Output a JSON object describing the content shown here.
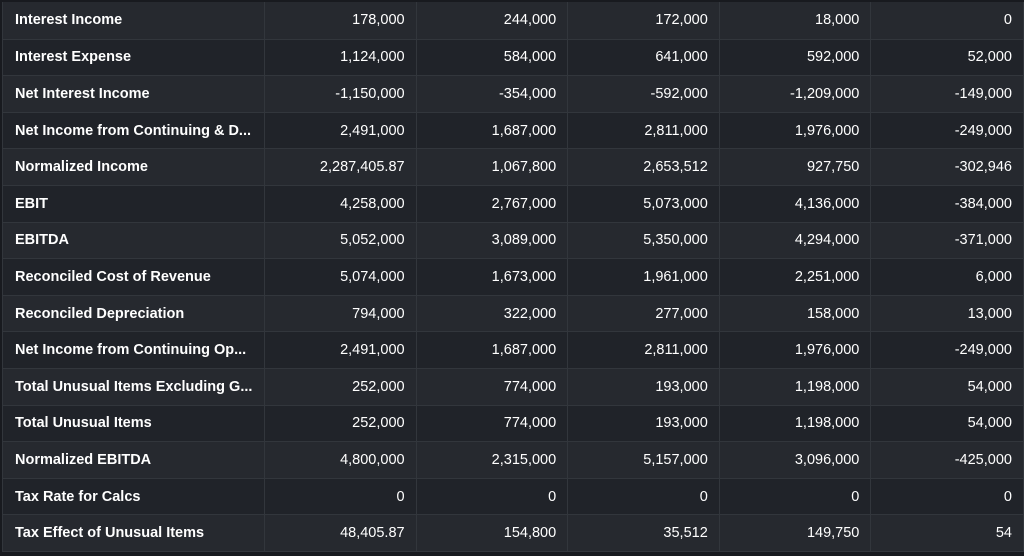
{
  "rows": [
    {
      "label": "Interest Income",
      "values": [
        "178,000",
        "244,000",
        "172,000",
        "18,000",
        "0"
      ]
    },
    {
      "label": "Interest Expense",
      "values": [
        "1,124,000",
        "584,000",
        "641,000",
        "592,000",
        "52,000"
      ]
    },
    {
      "label": "Net Interest Income",
      "values": [
        "-1,150,000",
        "-354,000",
        "-592,000",
        "-1,209,000",
        "-149,000"
      ]
    },
    {
      "label": "Net Income from Continuing & D...",
      "values": [
        "2,491,000",
        "1,687,000",
        "2,811,000",
        "1,976,000",
        "-249,000"
      ]
    },
    {
      "label": "Normalized Income",
      "values": [
        "2,287,405.87",
        "1,067,800",
        "2,653,512",
        "927,750",
        "-302,946"
      ]
    },
    {
      "label": "EBIT",
      "values": [
        "4,258,000",
        "2,767,000",
        "5,073,000",
        "4,136,000",
        "-384,000"
      ]
    },
    {
      "label": "EBITDA",
      "values": [
        "5,052,000",
        "3,089,000",
        "5,350,000",
        "4,294,000",
        "-371,000"
      ]
    },
    {
      "label": "Reconciled Cost of Revenue",
      "values": [
        "5,074,000",
        "1,673,000",
        "1,961,000",
        "2,251,000",
        "6,000"
      ]
    },
    {
      "label": "Reconciled Depreciation",
      "values": [
        "794,000",
        "322,000",
        "277,000",
        "158,000",
        "13,000"
      ]
    },
    {
      "label": "Net Income from Continuing Op...",
      "values": [
        "2,491,000",
        "1,687,000",
        "2,811,000",
        "1,976,000",
        "-249,000"
      ]
    },
    {
      "label": "Total Unusual Items Excluding G...",
      "values": [
        "252,000",
        "774,000",
        "193,000",
        "1,198,000",
        "54,000"
      ]
    },
    {
      "label": "Total Unusual Items",
      "values": [
        "252,000",
        "774,000",
        "193,000",
        "1,198,000",
        "54,000"
      ]
    },
    {
      "label": "Normalized EBITDA",
      "values": [
        "4,800,000",
        "2,315,000",
        "5,157,000",
        "3,096,000",
        "-425,000"
      ]
    },
    {
      "label": "Tax Rate for Calcs",
      "values": [
        "0",
        "0",
        "0",
        "0",
        "0"
      ]
    },
    {
      "label": "Tax Effect of Unusual Items",
      "values": [
        "48,405.87",
        "154,800",
        "35,512",
        "149,750",
        "54"
      ]
    }
  ]
}
